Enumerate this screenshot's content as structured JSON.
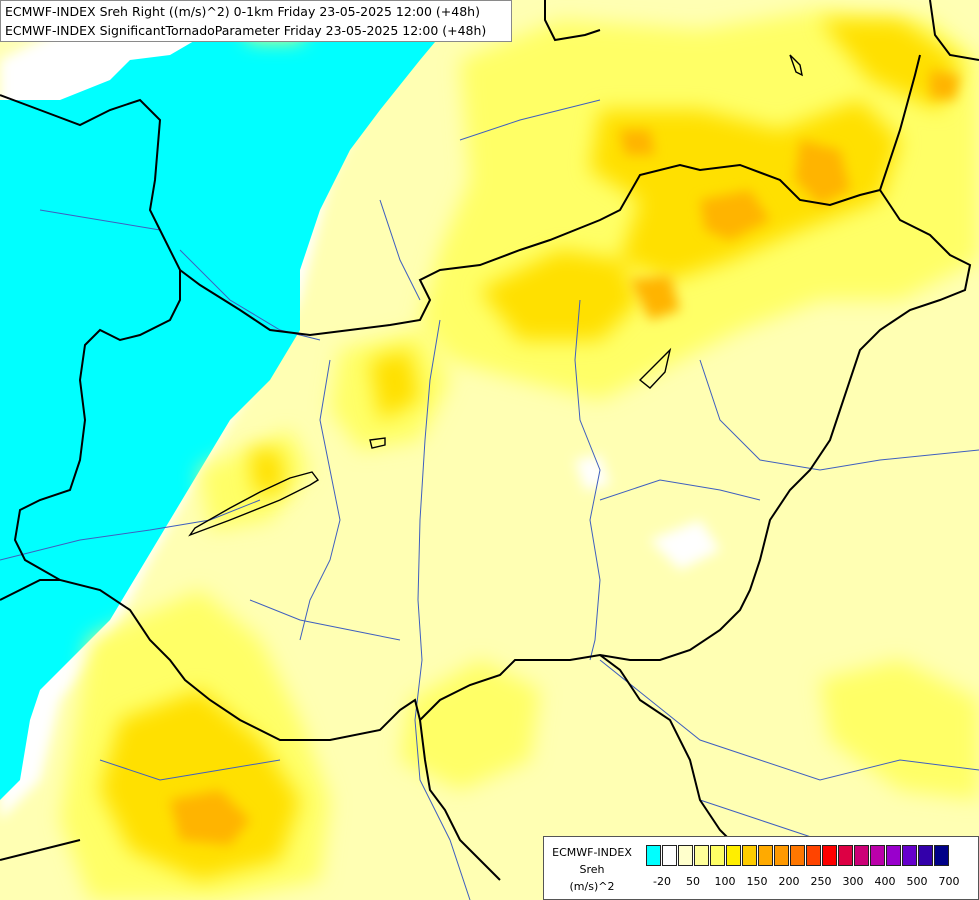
{
  "header": {
    "line1": "ECMWF-INDEX Sreh Right ((m/s)^2) 0-1km Friday 23-05-2025 12:00 (+48h)",
    "line2": "ECMWF-INDEX SignificantTornadoParameter Friday 23-05-2025 12:00 (+48h)"
  },
  "legend": {
    "line1": "ECMWF-INDEX",
    "line2": "Sreh",
    "line3": "(m/s)^2",
    "ticks": [
      "-20",
      "50",
      "100",
      "150",
      "200",
      "250",
      "300",
      "400",
      "500",
      "700"
    ],
    "colors": [
      "#00ffff",
      "#ffffff",
      "#ffffcc",
      "#ffff99",
      "#ffff66",
      "#ffee00",
      "#ffcc00",
      "#ffaa00",
      "#ff9900",
      "#ff7700",
      "#ff4400",
      "#ff0000",
      "#dd0044",
      "#cc0077",
      "#bb00aa",
      "#9900cc",
      "#6600cc",
      "#3300aa",
      "#000088"
    ]
  },
  "colors": {
    "cyan_field": "#00ffff",
    "light_yellow": "#ffffb3",
    "yellow": "#ffff66",
    "gold": "#ffe000",
    "orange": "#ffb400",
    "border_line": "#000000",
    "river_line": "#3f5fbf"
  }
}
